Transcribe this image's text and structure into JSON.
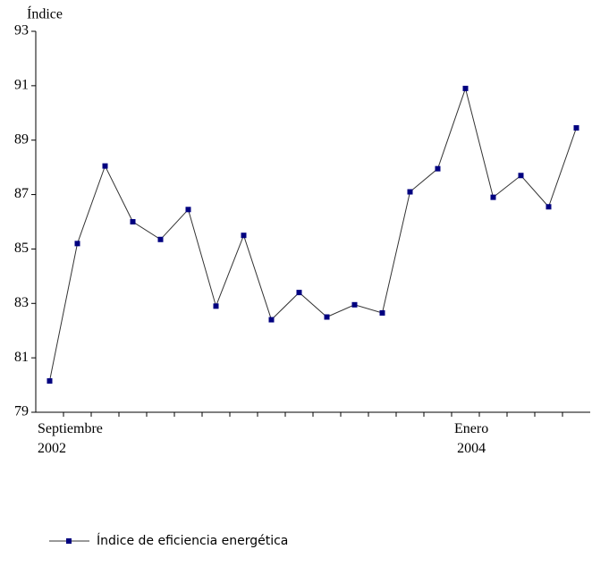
{
  "chart_data": {
    "type": "line",
    "y_label": "Índice",
    "categories": [
      "Septiembre\n2002",
      null,
      null,
      null,
      null,
      null,
      null,
      null,
      null,
      null,
      null,
      null,
      null,
      null,
      null,
      null,
      "Enero\n2004",
      null,
      null,
      null
    ],
    "series": [
      {
        "name": "Índice de eficiencia energética",
        "color": "#000080",
        "values": [
          80.15,
          85.2,
          88.05,
          86.0,
          85.35,
          86.45,
          82.9,
          85.5,
          82.4,
          83.4,
          82.5,
          82.95,
          82.65,
          87.1,
          87.95,
          90.9,
          86.9,
          87.7,
          86.55,
          89.45
        ]
      }
    ],
    "ylim": [
      79,
      93
    ],
    "yticks": [
      79,
      81,
      83,
      85,
      87,
      89,
      91,
      93
    ],
    "legend": "bottom"
  }
}
